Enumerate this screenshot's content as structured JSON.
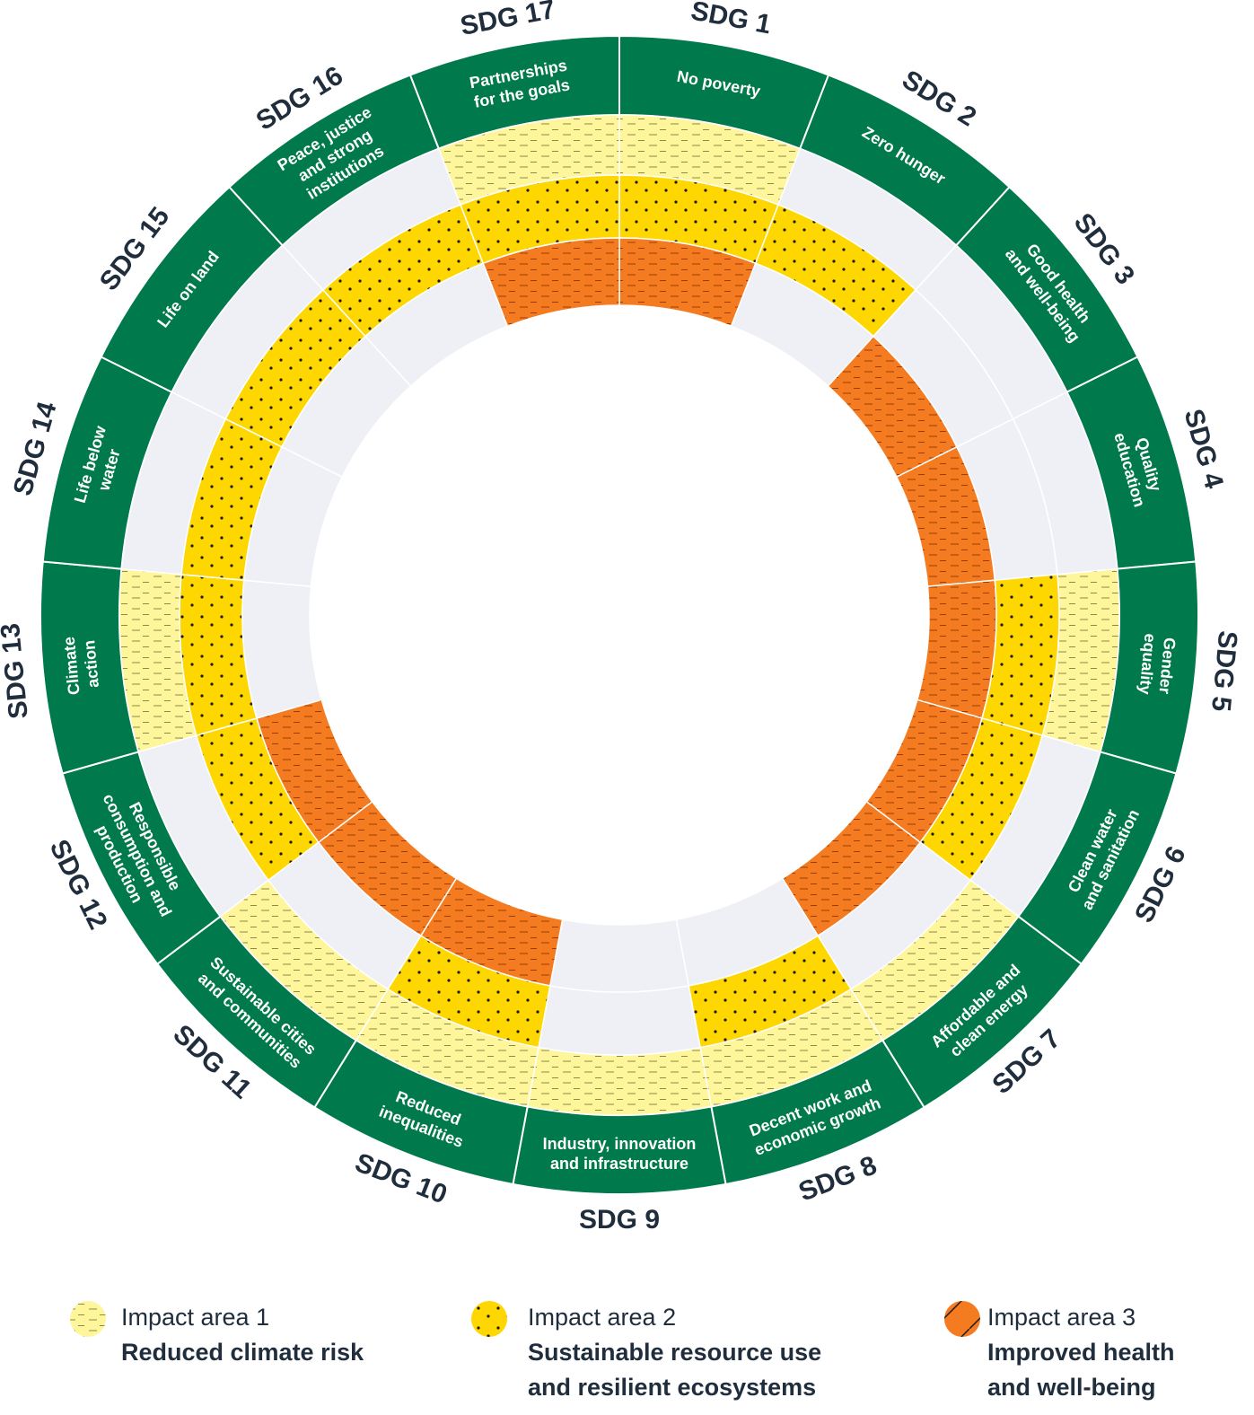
{
  "sdgs": [
    {
      "label": "SDG 1",
      "name": [
        "No poverty"
      ],
      "impact": [
        true,
        true,
        true
      ]
    },
    {
      "label": "SDG 2",
      "name": [
        "Zero hunger"
      ],
      "impact": [
        false,
        true,
        false
      ]
    },
    {
      "label": "SDG 3",
      "name": [
        "Good health",
        "and well-being"
      ],
      "impact": [
        false,
        false,
        true
      ]
    },
    {
      "label": "SDG 4",
      "name": [
        "Quality",
        "education"
      ],
      "impact": [
        false,
        false,
        true
      ]
    },
    {
      "label": "SDG 5",
      "name": [
        "Gender",
        "equality"
      ],
      "impact": [
        true,
        true,
        true
      ]
    },
    {
      "label": "SDG 6",
      "name": [
        "Clean water",
        "and sanitation"
      ],
      "impact": [
        false,
        true,
        true
      ]
    },
    {
      "label": "SDG 7",
      "name": [
        "Affordable and",
        "clean energy"
      ],
      "impact": [
        true,
        false,
        true
      ]
    },
    {
      "label": "SDG 8",
      "name": [
        "Decent work and",
        "economic growth"
      ],
      "impact": [
        true,
        true,
        false
      ]
    },
    {
      "label": "SDG 9",
      "name": [
        "Industry, innovation",
        "and infrastructure"
      ],
      "impact": [
        true,
        false,
        false
      ]
    },
    {
      "label": "SDG 10",
      "name": [
        "Reduced",
        "inequalities"
      ],
      "impact": [
        true,
        true,
        true
      ]
    },
    {
      "label": "SDG 11",
      "name": [
        "Sustainable cities",
        "and communities"
      ],
      "impact": [
        true,
        false,
        true
      ]
    },
    {
      "label": "SDG 12",
      "name": [
        "Responsible",
        "consumption and",
        "production"
      ],
      "impact": [
        false,
        true,
        true
      ]
    },
    {
      "label": "SDG 13",
      "name": [
        "Climate",
        "action"
      ],
      "impact": [
        true,
        true,
        false
      ]
    },
    {
      "label": "SDG 14",
      "name": [
        "Life below",
        "water"
      ],
      "impact": [
        false,
        true,
        false
      ]
    },
    {
      "label": "SDG 15",
      "name": [
        "Life on land"
      ],
      "impact": [
        false,
        true,
        false
      ]
    },
    {
      "label": "SDG 16",
      "name": [
        "Peace, justice",
        "and strong",
        "institutions"
      ],
      "impact": [
        false,
        true,
        false
      ]
    },
    {
      "label": "SDG 17",
      "name": [
        "Partnerships",
        "for the goals"
      ],
      "impact": [
        true,
        true,
        true
      ]
    }
  ],
  "legend": [
    {
      "title": "Impact area 1",
      "description": [
        "Reduced climate risk"
      ]
    },
    {
      "title": "Impact area 2",
      "description": [
        "Sustainable resource use",
        "and resilient ecosystems"
      ]
    },
    {
      "title": "Impact area 3",
      "description": [
        "Improved health",
        "and well-being"
      ]
    }
  ]
}
